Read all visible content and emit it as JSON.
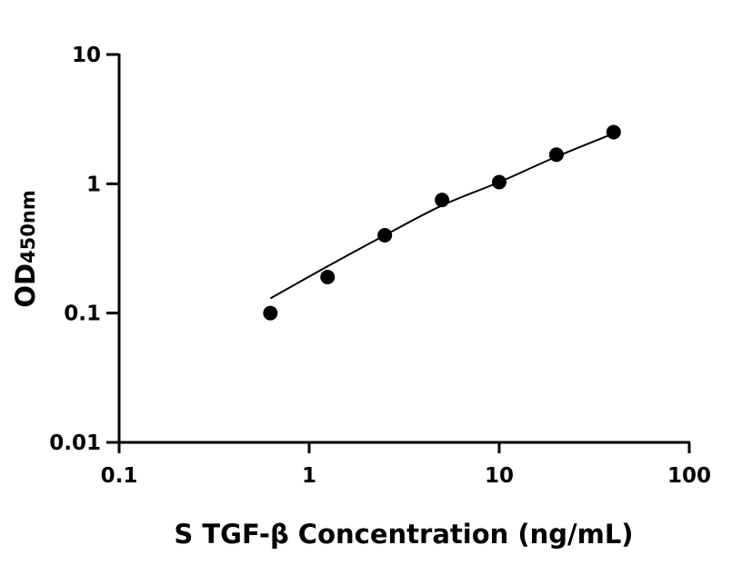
{
  "chart_data": {
    "type": "scatter",
    "xlabel": "S TGF-β Concentration (ng/mL)",
    "ylabel_main": "OD",
    "ylabel_sub": "450nm",
    "xscale": "log",
    "yscale": "log",
    "xlim": [
      0.1,
      100
    ],
    "ylim": [
      0.01,
      10
    ],
    "xticks": [
      "0.1",
      "1",
      "10",
      "100"
    ],
    "yticks": [
      "0.01",
      "0.1",
      "1",
      "10"
    ],
    "grid": false,
    "points": {
      "x": [
        0.625,
        1.25,
        2.5,
        5,
        10,
        20,
        40
      ],
      "y": [
        0.1,
        0.19,
        0.4,
        0.75,
        1.03,
        1.68,
        2.51
      ]
    },
    "fit_curve": {
      "x": [
        0.625,
        1.25,
        2.5,
        5,
        10,
        20,
        40
      ],
      "y": [
        0.13,
        0.23,
        0.4,
        0.68,
        1.03,
        1.62,
        2.45
      ]
    },
    "colors": {
      "marker": "#000000",
      "line": "#000000"
    }
  }
}
